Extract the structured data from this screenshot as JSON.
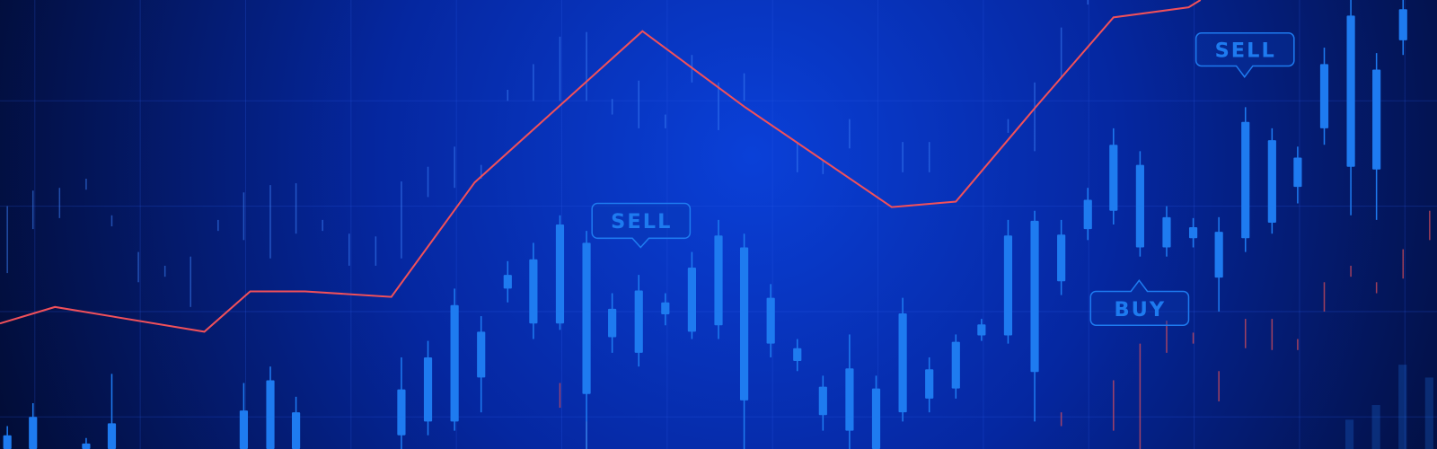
{
  "labels": {
    "sell_center": "SELL",
    "sell_right": "SELL",
    "buy": "BUY"
  }
}
